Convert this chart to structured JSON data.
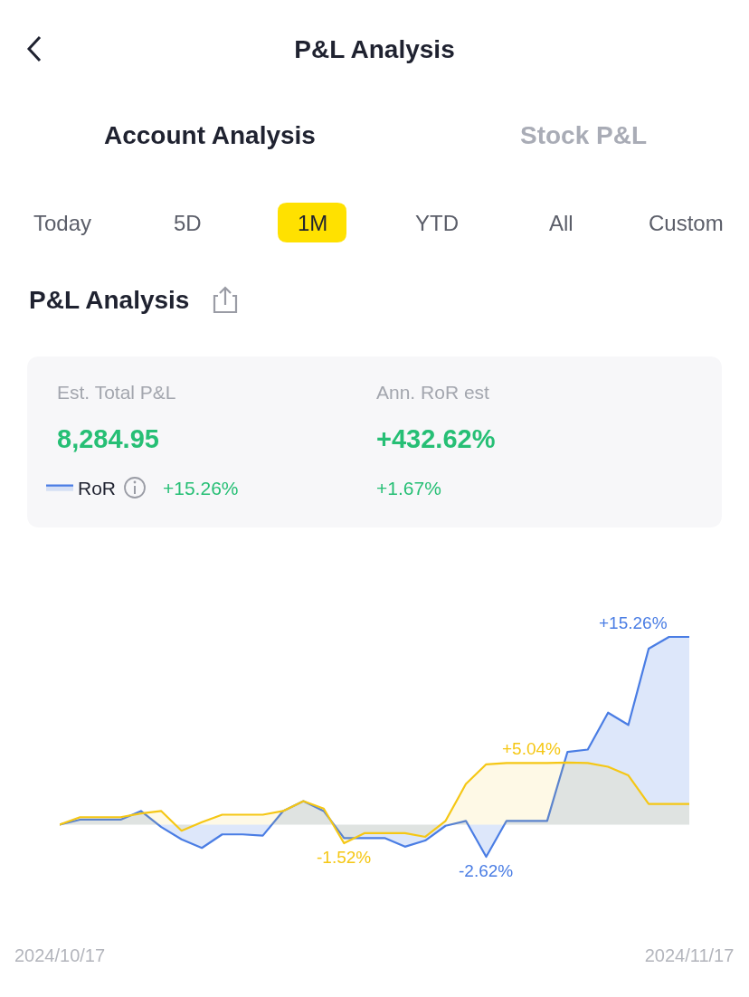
{
  "chart_data": {
    "type": "area",
    "title": "P&L Analysis",
    "annotations": [
      "Account Analysis",
      "Stock P&L",
      "Today",
      "5D",
      "1M",
      "YTD",
      "All",
      "Custom",
      "P&L Analysis",
      "Est. Total P&L",
      "8,284.95",
      "Ann. RoR est",
      "+432.62%",
      "+15.26%",
      "+1.67%"
    ],
    "x": [
      "2024-10-17",
      "2024-10-18",
      "2024-10-19",
      "2024-10-20",
      "2024-10-21",
      "2024-10-22",
      "2024-10-23",
      "2024-10-24",
      "2024-10-25",
      "2024-10-26",
      "2024-10-27",
      "2024-10-28",
      "2024-10-29",
      "2024-10-30",
      "2024-10-31",
      "2024-11-01",
      "2024-11-02",
      "2024-11-03",
      "2024-11-04",
      "2024-11-05",
      "2024-11-06",
      "2024-11-07",
      "2024-11-08",
      "2024-11-09",
      "2024-11-10",
      "2024-11-11",
      "2024-11-12",
      "2024-11-13",
      "2024-11-14",
      "2024-11-15",
      "2024-11-16",
      "2024-11-17"
    ],
    "series": [
      {
        "name": "RoR",
        "color": "#4a7de4",
        "values": [
          0,
          0.4,
          0.4,
          0.4,
          1.1,
          -0.2,
          -1.2,
          -1.9,
          -0.8,
          -0.8,
          -0.9,
          1.1,
          1.9,
          1.1,
          -1.1,
          -1.1,
          -1.1,
          -1.8,
          -1.3,
          -0.1,
          0.3,
          -2.62,
          0.3,
          0.3,
          0.3,
          5.9,
          6.1,
          9.1,
          8.1,
          14.3,
          15.26,
          15.26
        ],
        "value_labels": [
          null,
          null,
          null,
          null,
          null,
          null,
          null,
          null,
          null,
          null,
          null,
          null,
          null,
          null,
          null,
          null,
          null,
          null,
          null,
          null,
          null,
          "-2.62%",
          null,
          null,
          null,
          null,
          null,
          null,
          null,
          null,
          "+15.26%",
          null
        ]
      },
      {
        "color": "#f5c715",
        "values": [
          0,
          0.6,
          0.6,
          0.6,
          0.9,
          1.1,
          -0.5,
          0.2,
          0.8,
          0.8,
          0.8,
          1.1,
          1.9,
          1.3,
          -1.52,
          -0.7,
          -0.7,
          -0.7,
          -1.0,
          0.3,
          3.3,
          4.9,
          5.0,
          5.0,
          5.0,
          5.04,
          5.0,
          4.7,
          4.0,
          1.67,
          1.67,
          1.67
        ],
        "value_labels": [
          null,
          null,
          null,
          null,
          null,
          null,
          null,
          null,
          null,
          null,
          null,
          null,
          null,
          null,
          "-1.52%",
          null,
          null,
          null,
          null,
          null,
          null,
          null,
          null,
          null,
          null,
          "+5.04%",
          null,
          null,
          null,
          null,
          null,
          null
        ]
      }
    ],
    "xlim": [
      "2024-10-17",
      "2024-11-17"
    ],
    "xticks": [
      {
        "value": "2024-10-17",
        "label": "2024/10/17"
      },
      {
        "value": "2024-11-17",
        "label": "2024/11/17"
      }
    ],
    "legend": "top left",
    "tick_labels": "x"
  }
}
